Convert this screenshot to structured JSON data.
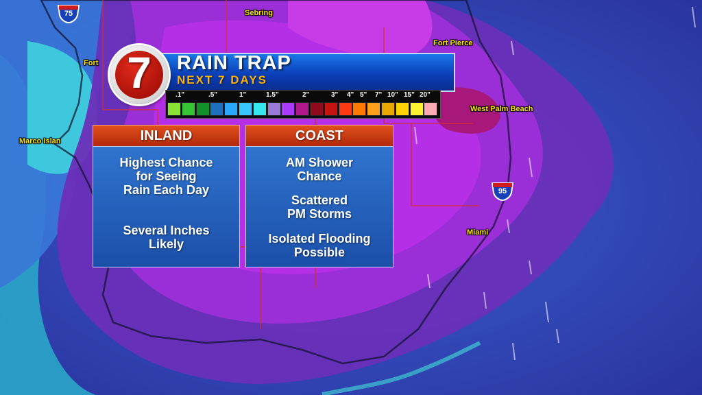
{
  "title": "RAIN TRAP",
  "subtitle": "NEXT 7 DAYS",
  "logo": {
    "text": "7",
    "icon": "wsvn-7-logo"
  },
  "legend": {
    "tick_labels": [
      ".1\"",
      ".5\"",
      "1\"",
      "1.5\"",
      "2\"",
      "3\"",
      "4\"",
      "5\"",
      "7\"",
      "10\"",
      "15\"",
      "20\""
    ],
    "swatch_colors": [
      "#8ae234",
      "#34c434",
      "#12902a",
      "#1f6fbf",
      "#2aa7ff",
      "#38c8ff",
      "#34e8ee",
      "#9a7ad8",
      "#a93bff",
      "#b0178a",
      "#8f0a1a",
      "#c71212",
      "#ff3a12",
      "#ff7a00",
      "#ff9f1a",
      "#e8a800",
      "#ffd400",
      "#fff230",
      "#ffaab4"
    ]
  },
  "panels": {
    "inland": {
      "header": "INLAND",
      "line1a": "Highest Chance",
      "line1b": "for Seeing",
      "line1c": "Rain Each Day",
      "line2a": "Several Inches",
      "line2b": "Likely"
    },
    "coast": {
      "header": "COAST",
      "line1a": "AM Shower",
      "line1b": "Chance",
      "line2a": "Scattered",
      "line2b": "PM Storms",
      "line3a": "Isolated Flooding",
      "line3b": "Possible"
    }
  },
  "map": {
    "cities": {
      "sebring": "Sebring",
      "fort_pierce": "Fort Pierce",
      "fort_myers": "Fort",
      "west_palm_beach": "West Palm Beach",
      "marco_island": "Marco Islan",
      "miami": "Miami"
    },
    "highways": {
      "i75": "75",
      "i95": "95"
    }
  }
}
